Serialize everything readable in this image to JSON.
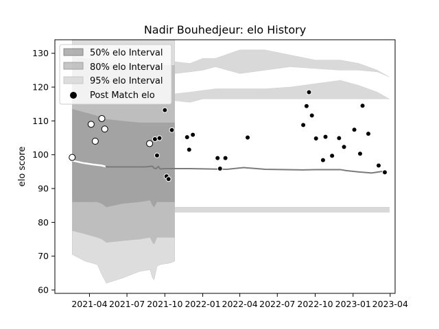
{
  "chart_data": {
    "type": "line",
    "title": "Nadir Bouhedjeur: elo History",
    "xlabel": "",
    "ylabel": "elo score",
    "xlim": [
      "2021-01-07",
      "2023-04-13"
    ],
    "ylim": [
      59,
      134
    ],
    "grid": false,
    "legend_placement": "top-left",
    "x_ticks": [
      "2021-04",
      "2021-07",
      "2021-10",
      "2022-01",
      "2022-04",
      "2022-07",
      "2022-10",
      "2023-01",
      "2023-04"
    ],
    "y_ticks": [
      60,
      70,
      80,
      90,
      100,
      110,
      120,
      130
    ],
    "legend": {
      "i50": "50% elo Interval",
      "i80": "80% elo Interval",
      "i95": "95% elo Interval",
      "post": "Post Match elo"
    },
    "colors": {
      "band50": "#999999",
      "band80": "#b3b3b3",
      "band95": "#d9d9d9",
      "mean_line": "#7a7a7a",
      "early_line": "#ffffff"
    },
    "intervals": {
      "x": [
        "2021-02-18",
        "2021-03-22",
        "2021-04-20",
        "2021-05-01",
        "2021-05-12",
        "2021-06-20",
        "2021-08-01",
        "2021-08-26",
        "2021-09-01",
        "2021-09-05",
        "2021-09-12",
        "2021-09-20",
        "2021-10-15",
        "2021-10-25"
      ],
      "upper95": [
        138.5,
        138.5,
        138.5,
        138.5,
        138.5,
        138.5,
        138.5,
        138.5,
        138.5,
        138.5,
        138.5,
        138.5,
        138.5,
        138.5
      ],
      "upper80": [
        129,
        128.5,
        128,
        127.5,
        126.5,
        126.5,
        126.5,
        126.5,
        126.5,
        126.5,
        126.5,
        126.5,
        126.5,
        126.5
      ],
      "upper50": [
        113.5,
        112.5,
        111.5,
        111,
        110.5,
        110,
        109.5,
        109.5,
        109.5,
        109.5,
        109.5,
        109.5,
        109.5,
        109.5
      ],
      "lower50": [
        86,
        86,
        86,
        85.5,
        84.5,
        85.5,
        86,
        86.5,
        85,
        84.5,
        86,
        86,
        86,
        86
      ],
      "lower80": [
        77.5,
        76.5,
        75.5,
        75,
        74,
        74.5,
        75,
        75.5,
        74,
        73.5,
        75.5,
        75.5,
        75.5,
        75.5
      ],
      "lower95": [
        70.5,
        68.5,
        67.5,
        64.5,
        62,
        63.5,
        65.5,
        66,
        63.5,
        63,
        67,
        67.5,
        68,
        68.5
      ]
    },
    "interval_gaps": {
      "x": [
        "2021-10-25",
        "2021-12-01",
        "2022-01-01",
        "2022-02-01",
        "2022-04-01",
        "2022-06-01",
        "2022-08-01",
        "2022-10-01",
        "2022-12-01",
        "2023-01-15",
        "2023-03-01",
        "2023-03-30"
      ],
      "gap_upper_top": [
        127.5,
        127,
        128.5,
        128.5,
        131,
        131,
        129.5,
        128,
        128,
        127,
        125,
        123
      ],
      "gap_upper_bottom": [
        124,
        124.5,
        125,
        126,
        124,
        125,
        126,
        125.5,
        125,
        125,
        124.5,
        123
      ],
      "gap_mid_top": [
        118,
        118.5,
        119,
        119.5,
        119.5,
        119.5,
        120,
        121,
        122,
        120.5,
        118.5,
        116.5
      ],
      "gap_mid_bottom": [
        116,
        115.5,
        116.5,
        116.5,
        116.5,
        116.5,
        116.5,
        116.5,
        116.5,
        116.5,
        116.5,
        116.5
      ],
      "gap_low_top": [
        84.5,
        84.5,
        84.5,
        84.5,
        84.5,
        84.5,
        84.5,
        84.5,
        84.5,
        84.5,
        84.5,
        84.5
      ],
      "gap_low_bottom": [
        83,
        83,
        83,
        83,
        83,
        83,
        83,
        83,
        83,
        83,
        83,
        83
      ]
    },
    "mean_line": {
      "x": [
        "2021-02-18",
        "2021-03-10",
        "2021-04-05",
        "2021-05-01",
        "2021-05-15",
        "2021-08-15",
        "2021-09-01",
        "2021-09-05",
        "2021-09-10",
        "2021-09-15",
        "2021-09-20",
        "2021-10-01",
        "2021-12-01",
        "2022-03-01",
        "2022-04-10",
        "2022-06-01",
        "2022-09-01",
        "2022-10-01",
        "2022-11-01",
        "2022-12-01",
        "2022-12-15",
        "2023-01-15",
        "2023-02-15",
        "2023-03-15"
      ],
      "y": [
        98.5,
        97.8,
        97.2,
        96.8,
        96.4,
        96.4,
        96.6,
        96.0,
        95.9,
        96.5,
        95.8,
        95.9,
        95.9,
        95.7,
        96.2,
        95.7,
        95.5,
        95.6,
        95.6,
        95.6,
        95.3,
        94.9,
        94.6,
        95.1
      ]
    },
    "early_line": {
      "x": [
        "2021-02-18",
        "2021-03-15",
        "2021-04-10",
        "2021-05-01",
        "2021-05-10"
      ],
      "y": [
        98.3,
        97.6,
        97.1,
        96.8,
        96.5
      ]
    },
    "post_match_elo": {
      "x": [
        "2021-02-18",
        "2021-04-05",
        "2021-04-15",
        "2021-05-01",
        "2021-05-08",
        "2021-08-25",
        "2021-09-07",
        "2021-09-12",
        "2021-09-18",
        "2021-10-01",
        "2021-10-05",
        "2021-10-10",
        "2021-10-18",
        "2021-11-24",
        "2021-11-29",
        "2021-12-08",
        "2022-02-06",
        "2022-02-12",
        "2022-02-25",
        "2022-04-20",
        "2022-09-02",
        "2022-09-10",
        "2022-09-16",
        "2022-09-23",
        "2022-10-03",
        "2022-10-20",
        "2022-10-26",
        "2022-11-11",
        "2022-11-28",
        "2022-12-10",
        "2023-01-04",
        "2023-01-18",
        "2023-01-24",
        "2023-02-07",
        "2023-03-04",
        "2023-03-19"
      ],
      "y": [
        99.2,
        109.0,
        104.0,
        110.7,
        107.6,
        103.3,
        104.6,
        99.8,
        104.9,
        113.2,
        93.6,
        92.8,
        107.3,
        105.2,
        101.5,
        105.9,
        99.0,
        95.9,
        99.0,
        105.1,
        108.8,
        114.4,
        118.5,
        111.6,
        104.8,
        98.4,
        105.3,
        99.7,
        104.9,
        102.3,
        107.4,
        100.3,
        114.5,
        106.2,
        96.8,
        94.8
      ],
      "highlighted": 6
    }
  }
}
